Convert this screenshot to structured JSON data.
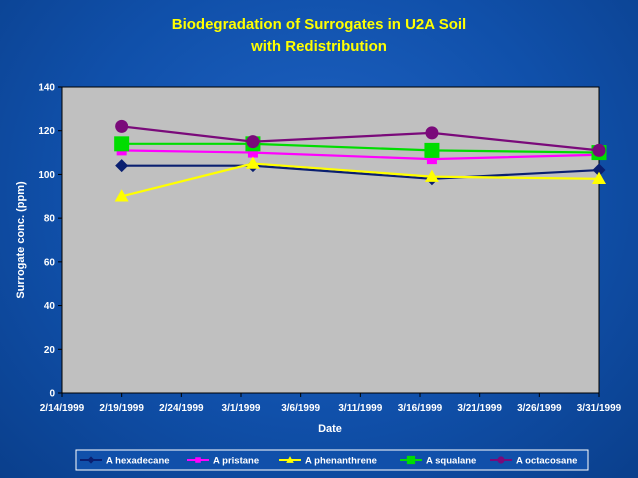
{
  "chart_data": {
    "type": "line",
    "title": "Biodegradation of Surrogates in U2A Soil",
    "subtitle": "with Redistribution",
    "xlabel": "Date",
    "ylabel": "Surrogate conc. (ppm)",
    "xlim": [
      "2/14/1999",
      "3/31/1999"
    ],
    "ylim": [
      0,
      140
    ],
    "yticks": [
      "0",
      "20",
      "40",
      "60",
      "80",
      "100",
      "120",
      "140"
    ],
    "xticks": [
      "2/14/1999",
      "2/19/1999",
      "2/24/1999",
      "3/1/1999",
      "3/6/1999",
      "3/11/1999",
      "3/16/1999",
      "3/21/1999",
      "3/26/1999",
      "3/31/1999"
    ],
    "grid": false,
    "legend_position": "bottom",
    "background_color": "#c0c0c0",
    "x": [
      "2/19/1999",
      "3/2/1999",
      "3/17/1999",
      "3/31/1999"
    ],
    "series": [
      {
        "name": "A hexadecane",
        "values": [
          104,
          104,
          98,
          102
        ],
        "color": "#0a1f70",
        "marker": "diamond"
      },
      {
        "name": "A pristane",
        "values": [
          111,
          110,
          107,
          109
        ],
        "color": "#ff00ff",
        "marker": "square"
      },
      {
        "name": "A phenanthrene",
        "values": [
          90,
          105,
          99,
          98
        ],
        "color": "#ffff00",
        "marker": "triangle"
      },
      {
        "name": "A squalane",
        "values": [
          114,
          114,
          111,
          110
        ],
        "color": "#00dd00",
        "marker": "square-large"
      },
      {
        "name": "A octacosane",
        "values": [
          122,
          115,
          119,
          111
        ],
        "color": "#7a0a7a",
        "marker": "circle"
      }
    ]
  }
}
